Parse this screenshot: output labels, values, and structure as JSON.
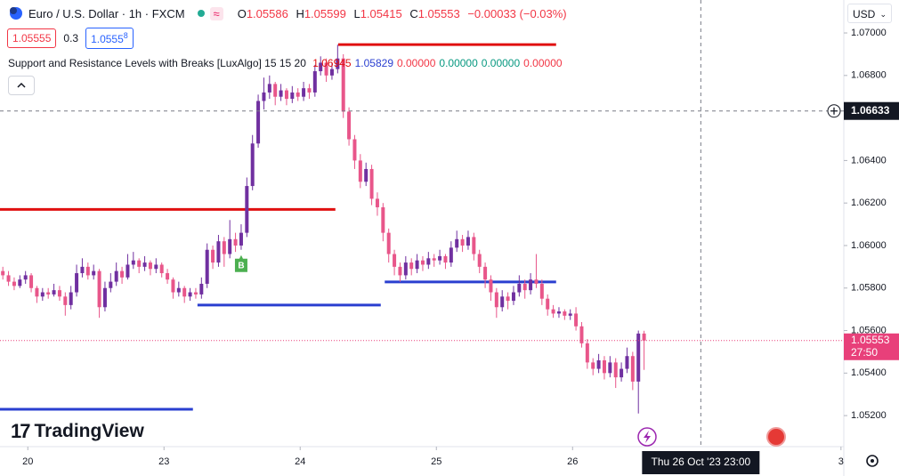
{
  "header": {
    "symbol": "Euro / U.S. Dollar · 1h · FXCM",
    "o_label": "O",
    "h_label": "H",
    "l_label": "L",
    "c_label": "C",
    "change": "−0.00033 (−0.03%)"
  },
  "buttons": {
    "sell": "1.05555",
    "spread": "0.3",
    "buy_main": "1.0555",
    "buy_pip": "8"
  },
  "indicator": {
    "name": "Support and Resistance Levels with Breaks [LuxAlgo] 15 15 20",
    "outputs": [
      "0.00000",
      "0.00000",
      "0.00000",
      "0.00000"
    ],
    "output_colors": [
      "#f23645",
      "#089981",
      "#089981",
      "#f23645"
    ]
  },
  "currency": "USD",
  "brand": "TradingView",
  "chart_data": {
    "type": "candlestick",
    "up_color": "#7030a0",
    "down_color": "#e8568a",
    "ohlc": [
      [
        1.0588,
        1.059,
        1.0584,
        1.0586
      ],
      [
        1.0586,
        1.0588,
        1.0581,
        1.0583
      ],
      [
        1.0583,
        1.0585,
        1.0579,
        1.0581
      ],
      [
        1.0581,
        1.0586,
        1.058,
        1.0584
      ],
      [
        1.0584,
        1.0588,
        1.0582,
        1.0586
      ],
      [
        1.0586,
        1.0587,
        1.0578,
        1.058
      ],
      [
        1.058,
        1.0581,
        1.0573,
        1.0576
      ],
      [
        1.0576,
        1.058,
        1.0574,
        1.0578
      ],
      [
        1.0578,
        1.058,
        1.0575,
        1.0577
      ],
      [
        1.0577,
        1.0582,
        1.0576,
        1.0579
      ],
      [
        1.0579,
        1.0581,
        1.0574,
        1.0576
      ],
      [
        1.0576,
        1.0578,
        1.0567,
        1.0572
      ],
      [
        1.0572,
        1.0581,
        1.057,
        1.0578
      ],
      [
        1.0578,
        1.0591,
        1.0576,
        1.0587
      ],
      [
        1.0587,
        1.0594,
        1.0585,
        1.059
      ],
      [
        1.059,
        1.0592,
        1.0584,
        1.0586
      ],
      [
        1.0586,
        1.0591,
        1.0584,
        1.0588
      ],
      [
        1.0588,
        1.0589,
        1.0566,
        1.0571
      ],
      [
        1.0571,
        1.0583,
        1.0569,
        1.058
      ],
      [
        1.058,
        1.0587,
        1.0578,
        1.0583
      ],
      [
        1.0583,
        1.0592,
        1.0581,
        1.0588
      ],
      [
        1.0588,
        1.059,
        1.0582,
        1.0585
      ],
      [
        1.0585,
        1.0596,
        1.0584,
        1.0591
      ],
      [
        1.0591,
        1.0597,
        1.0589,
        1.0593
      ],
      [
        1.0593,
        1.0594,
        1.0587,
        1.059
      ],
      [
        1.059,
        1.0595,
        1.0588,
        1.0592
      ],
      [
        1.0592,
        1.0593,
        1.0586,
        1.0589
      ],
      [
        1.0589,
        1.0594,
        1.0587,
        1.0591
      ],
      [
        1.0591,
        1.0592,
        1.0585,
        1.0587
      ],
      [
        1.0587,
        1.0589,
        1.0582,
        1.0584
      ],
      [
        1.0584,
        1.0585,
        1.0575,
        1.0578
      ],
      [
        1.0578,
        1.0583,
        1.0576,
        1.058
      ],
      [
        1.058,
        1.0581,
        1.0573,
        1.0576
      ],
      [
        1.0576,
        1.058,
        1.0574,
        1.0578
      ],
      [
        1.0578,
        1.058,
        1.0575,
        1.0577
      ],
      [
        1.0577,
        1.0585,
        1.0575,
        1.0582
      ],
      [
        1.0582,
        1.0601,
        1.058,
        1.0598
      ],
      [
        1.0598,
        1.06,
        1.0589,
        1.0592
      ],
      [
        1.0592,
        1.0605,
        1.059,
        1.0602
      ],
      [
        1.0602,
        1.0604,
        1.059,
        1.0596
      ],
      [
        1.0596,
        1.0612,
        1.0594,
        1.0603
      ],
      [
        1.0603,
        1.0606,
        1.0597,
        1.06
      ],
      [
        1.06,
        1.061,
        1.0598,
        1.0606
      ],
      [
        1.0606,
        1.0632,
        1.0604,
        1.0628
      ],
      [
        1.0628,
        1.0652,
        1.0626,
        1.0648
      ],
      [
        1.0648,
        1.0671,
        1.0646,
        1.0668
      ],
      [
        1.0668,
        1.0679,
        1.0664,
        1.0672
      ],
      [
        1.0672,
        1.068,
        1.0669,
        1.0676
      ],
      [
        1.0676,
        1.0677,
        1.0666,
        1.067
      ],
      [
        1.067,
        1.0676,
        1.0668,
        1.0673
      ],
      [
        1.0673,
        1.0674,
        1.0666,
        1.0669
      ],
      [
        1.0669,
        1.0675,
        1.0667,
        1.0672
      ],
      [
        1.0672,
        1.0674,
        1.0668,
        1.067
      ],
      [
        1.067,
        1.0677,
        1.0668,
        1.0674
      ],
      [
        1.0674,
        1.0676,
        1.0669,
        1.0672
      ],
      [
        1.0672,
        1.0685,
        1.067,
        1.0682
      ],
      [
        1.0682,
        1.0689,
        1.068,
        1.0686
      ],
      [
        1.0686,
        1.0688,
        1.0677,
        1.068
      ],
      [
        1.068,
        1.0686,
        1.0678,
        1.0683
      ],
      [
        1.0683,
        1.06945,
        1.0681,
        1.0688
      ],
      [
        1.0688,
        1.069,
        1.066,
        1.0663
      ],
      [
        1.0663,
        1.0665,
        1.0647,
        1.065
      ],
      [
        1.065,
        1.0652,
        1.0636,
        1.064
      ],
      [
        1.064,
        1.0643,
        1.0627,
        1.063
      ],
      [
        1.063,
        1.0639,
        1.0628,
        1.0636
      ],
      [
        1.0636,
        1.0638,
        1.0619,
        1.0622
      ],
      [
        1.0622,
        1.0625,
        1.0614,
        1.0618
      ],
      [
        1.0618,
        1.062,
        1.0602,
        1.0606
      ],
      [
        1.0606,
        1.0608,
        1.0592,
        1.0596
      ],
      [
        1.0596,
        1.0598,
        1.0586,
        1.059
      ],
      [
        1.059,
        1.0592,
        1.0583,
        1.0586
      ],
      [
        1.0586,
        1.0595,
        1.0584,
        1.0592
      ],
      [
        1.0592,
        1.0594,
        1.0586,
        1.0589
      ],
      [
        1.0589,
        1.0596,
        1.0587,
        1.0593
      ],
      [
        1.0593,
        1.0595,
        1.0588,
        1.0591
      ],
      [
        1.0591,
        1.0597,
        1.0589,
        1.0594
      ],
      [
        1.0594,
        1.0596,
        1.059,
        1.0593
      ],
      [
        1.0593,
        1.0598,
        1.0591,
        1.0595
      ],
      [
        1.0595,
        1.0596,
        1.0589,
        1.0592
      ],
      [
        1.0592,
        1.0602,
        1.059,
        1.0599
      ],
      [
        1.0599,
        1.0607,
        1.0597,
        1.0603
      ],
      [
        1.0603,
        1.0605,
        1.0597,
        1.06
      ],
      [
        1.06,
        1.0607,
        1.0598,
        1.0604
      ],
      [
        1.0604,
        1.0606,
        1.0593,
        1.0596
      ],
      [
        1.0596,
        1.0598,
        1.0587,
        1.059
      ],
      [
        1.059,
        1.0592,
        1.058,
        1.0584
      ],
      [
        1.0584,
        1.0586,
        1.0574,
        1.0578
      ],
      [
        1.0578,
        1.058,
        1.0566,
        1.0571
      ],
      [
        1.0571,
        1.0579,
        1.0569,
        1.0576
      ],
      [
        1.0576,
        1.0578,
        1.057,
        1.0574
      ],
      [
        1.0574,
        1.0581,
        1.0572,
        1.0578
      ],
      [
        1.0578,
        1.0586,
        1.0576,
        1.0582
      ],
      [
        1.0582,
        1.0584,
        1.0575,
        1.0579
      ],
      [
        1.0579,
        1.0587,
        1.0577,
        1.0584
      ],
      [
        1.0584,
        1.0596,
        1.058,
        1.0582
      ],
      [
        1.0582,
        1.0584,
        1.0572,
        1.0575
      ],
      [
        1.0575,
        1.0577,
        1.0567,
        1.057
      ],
      [
        1.057,
        1.0572,
        1.0566,
        1.0568
      ],
      [
        1.0568,
        1.0571,
        1.0566,
        1.0569
      ],
      [
        1.0569,
        1.057,
        1.0565,
        1.0567
      ],
      [
        1.0567,
        1.057,
        1.0565,
        1.0568
      ],
      [
        1.0568,
        1.0571,
        1.056,
        1.0562
      ],
      [
        1.0562,
        1.0564,
        1.0552,
        1.0554
      ],
      [
        1.0554,
        1.0556,
        1.0542,
        1.0545
      ],
      [
        1.0545,
        1.0547,
        1.0539,
        1.0542
      ],
      [
        1.0542,
        1.0549,
        1.054,
        1.0546
      ],
      [
        1.0546,
        1.0548,
        1.0537,
        1.054
      ],
      [
        1.054,
        1.0548,
        1.0538,
        1.0545
      ],
      [
        1.0545,
        1.0547,
        1.0533,
        1.0538
      ],
      [
        1.0538,
        1.0545,
        1.0536,
        1.0542
      ],
      [
        1.0542,
        1.0552,
        1.054,
        1.0548
      ],
      [
        1.0548,
        1.055,
        1.0532,
        1.0536
      ],
      [
        1.0536,
        1.056,
        1.0521,
        1.05586
      ],
      [
        1.05586,
        1.05599,
        1.05415,
        1.05553
      ]
    ],
    "xlim": [
      -0.5,
      148.2
    ],
    "xticks": [
      {
        "value": 4.4,
        "label": "20"
      },
      {
        "value": 28.4,
        "label": "23"
      },
      {
        "value": 52.4,
        "label": "24"
      },
      {
        "value": 76.4,
        "label": "25"
      },
      {
        "value": 100.4,
        "label": "26"
      },
      {
        "value": 147.7,
        "label": "3"
      }
    ],
    "ylim": [
      1.05054,
      1.07155
    ],
    "yticks": [
      {
        "value": 1.07,
        "label": "1.07000"
      },
      {
        "value": 1.068,
        "label": "1.06800"
      },
      {
        "value": 1.064,
        "label": "1.06400"
      },
      {
        "value": 1.062,
        "label": "1.06200"
      },
      {
        "value": 1.06,
        "label": "1.06000"
      },
      {
        "value": 1.058,
        "label": "1.05800"
      },
      {
        "value": 1.056,
        "label": "1.05600"
      },
      {
        "value": 1.054,
        "label": "1.05400"
      },
      {
        "value": 1.052,
        "label": "1.05200"
      }
    ],
    "levels": [
      {
        "value": 1.06945,
        "from": 59.1,
        "to": 97.5,
        "color": "#e01010"
      },
      {
        "value": 1.05829,
        "from": 67.3,
        "to": 97.5,
        "color": "#2a3fd0"
      },
      {
        "value": 1.0617,
        "from": -0.5,
        "to": 58.6,
        "color": "#e01010"
      },
      {
        "value": 1.0572,
        "from": 34.3,
        "to": 66.6,
        "color": "#2a3fd0"
      },
      {
        "value": 1.0523,
        "from": -0.5,
        "to": 33.5,
        "color": "#2a3fd0"
      }
    ],
    "break_label": {
      "text": "B",
      "index": 42,
      "color": "#4caf50"
    },
    "crosshair": {
      "index": 123,
      "price": 1.06633,
      "date_label": "Thu 26 Oct '23 23:00"
    },
    "countdown": "27:50",
    "last_color": "#e8407a"
  }
}
